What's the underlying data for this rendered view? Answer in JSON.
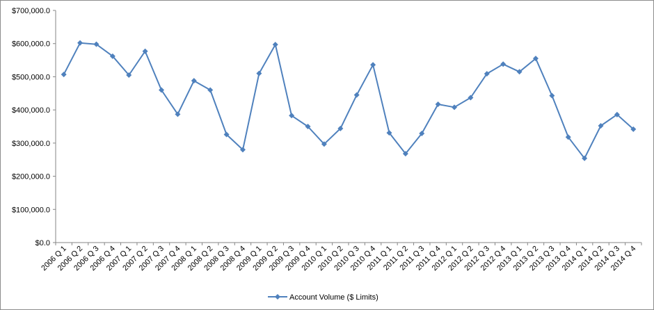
{
  "chart_data": {
    "type": "line",
    "title": "",
    "xlabel": "",
    "ylabel": "",
    "ylim": [
      0,
      700000
    ],
    "y_tick_step": 100000,
    "y_tick_labels": [
      "$0.0",
      "$100,000.0",
      "$200,000.0",
      "$300,000.0",
      "$400,000.0",
      "$500,000.0",
      "$600,000.0",
      "$700,000.0"
    ],
    "grid": false,
    "legend_position": "bottom",
    "categories": [
      "2006 Q 1",
      "2006 Q 2",
      "2006 Q 3",
      "2006 Q 4",
      "2007 Q 1",
      "2007 Q 2",
      "2007 Q 3",
      "2007 Q 4",
      "2008 Q 1",
      "2008 Q 2",
      "2008 Q 3",
      "2008 Q 4",
      "2009 Q 1",
      "2009 Q 2",
      "2009 Q 3",
      "2009 Q 4",
      "2010 Q 1",
      "2010 Q 2",
      "2010 Q 3",
      "2010 Q 4",
      "2011 Q 1",
      "2011 Q 2",
      "2011 Q 3",
      "2011 Q 4",
      "2012 Q 1",
      "2012 Q 2",
      "2012 Q 3",
      "2012 Q 4",
      "2013 Q 1",
      "2013 Q 2",
      "2013 Q 3",
      "2013 Q 4",
      "2014 Q 1",
      "2014 Q 2",
      "2014 Q 3",
      "2014 Q 4"
    ],
    "series": [
      {
        "name": "Account Volume ($ Limits)",
        "color": "#4f81bd",
        "marker": "diamond",
        "values": [
          507000,
          602000,
          598000,
          562000,
          505000,
          577000,
          460000,
          387000,
          488000,
          460000,
          326000,
          280000,
          510000,
          597000,
          383000,
          350000,
          297000,
          344000,
          445000,
          536000,
          331000,
          268000,
          329000,
          417000,
          408000,
          437000,
          509000,
          538000,
          515000,
          555000,
          443000,
          318000,
          254000,
          352000,
          386000,
          342000
        ]
      }
    ]
  }
}
